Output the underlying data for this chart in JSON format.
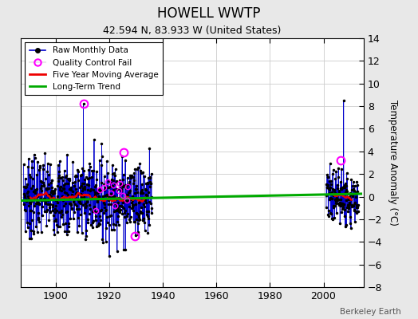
{
  "title": "HOWELL WWTP",
  "subtitle": "42.594 N, 83.933 W (United States)",
  "ylabel": "Temperature Anomaly (°C)",
  "attribution": "Berkeley Earth",
  "ylim": [
    -8,
    14
  ],
  "yticks": [
    -8,
    -6,
    -4,
    -2,
    0,
    2,
    4,
    6,
    8,
    10,
    12,
    14
  ],
  "xlim": [
    1887,
    2015
  ],
  "xticks": [
    1900,
    1920,
    1940,
    1960,
    1980,
    2000
  ],
  "bg_color": "#e8e8e8",
  "plot_bg": "#ffffff",
  "raw_color": "#0000cc",
  "trend_color": "#00aa00",
  "ma_color": "#ee0000",
  "qc_color": "#ff00ff",
  "long_term_trend_x": [
    1887,
    2014
  ],
  "long_term_trend_y": [
    -0.35,
    0.25
  ],
  "qc_fail_main": [
    [
      1910.5,
      8.2
    ],
    [
      1925.5,
      3.9
    ],
    [
      1929.5,
      -3.5
    ],
    [
      2006.5,
      3.2
    ]
  ],
  "qc_fail_cluster": [
    [
      1918.0,
      0.8
    ],
    [
      1919.5,
      1.3
    ],
    [
      1920.5,
      0.3
    ],
    [
      1921.5,
      1.0
    ],
    [
      1922.0,
      -0.8
    ],
    [
      1923.5,
      0.5
    ],
    [
      1924.0,
      1.2
    ],
    [
      1925.0,
      0.1
    ],
    [
      1926.5,
      -0.3
    ],
    [
      1927.0,
      0.9
    ],
    [
      1915.0,
      -1.2
    ],
    [
      1916.5,
      0.6
    ]
  ]
}
